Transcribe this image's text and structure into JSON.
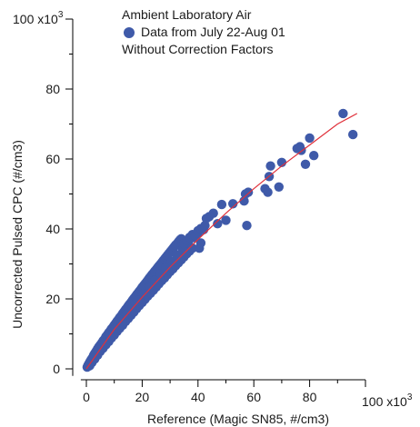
{
  "chart_data": {
    "type": "scatter",
    "title": "",
    "legend": {
      "position": "top-center",
      "lines": [
        "Ambient Laboratory Air",
        "Data from July 22-Aug 01",
        "Without Correction Factors"
      ],
      "marker_color": "#3f5aa9"
    },
    "xlabel": "Reference  (Magic SN85, #/cm3)",
    "ylabel": "Uncorrected Pulsed CPC (#/cm3)",
    "x_multiplier_label": "100 x10",
    "y_multiplier_label": "100 x10",
    "multiplier_exponent": "3",
    "xlim": [
      -2,
      100
    ],
    "ylim": [
      -2,
      100
    ],
    "x_ticks": [
      0,
      20,
      40,
      60,
      80
    ],
    "y_ticks": [
      0,
      20,
      40,
      60,
      80
    ],
    "x_tick_labels": [
      "0",
      "20",
      "40",
      "60",
      "80"
    ],
    "y_tick_labels": [
      "0",
      "20",
      "40",
      "60",
      "80"
    ],
    "grid": false,
    "colors": {
      "points": "#3f5aa9",
      "fit": "#e0303a",
      "axes": "#000000"
    },
    "series": [
      {
        "values": [
          [
            0.3,
            0.5
          ],
          [
            0.6,
            1.0
          ],
          [
            1.0,
            1.6
          ],
          [
            1.4,
            2.2
          ],
          [
            1.8,
            2.7
          ],
          [
            2.2,
            3.2
          ],
          [
            2.6,
            3.9
          ],
          [
            3.0,
            4.4
          ],
          [
            3.5,
            5.0
          ],
          [
            4.0,
            5.7
          ],
          [
            4.5,
            6.3
          ],
          [
            5.0,
            6.8
          ],
          [
            5.5,
            7.4
          ],
          [
            6.0,
            8.0
          ],
          [
            6.5,
            8.5
          ],
          [
            7.0,
            9.2
          ],
          [
            7.5,
            9.7
          ],
          [
            8.0,
            10.3
          ],
          [
            8.5,
            10.8
          ],
          [
            9.0,
            11.4
          ],
          [
            9.5,
            11.9
          ],
          [
            10.0,
            12.5
          ],
          [
            10.5,
            13.0
          ],
          [
            11.0,
            13.6
          ],
          [
            11.5,
            14.1
          ],
          [
            12.0,
            14.7
          ],
          [
            12.5,
            15.2
          ],
          [
            13.0,
            15.8
          ],
          [
            13.5,
            16.3
          ],
          [
            14.0,
            16.9
          ],
          [
            14.5,
            17.4
          ],
          [
            15.0,
            18.0
          ],
          [
            15.5,
            18.5
          ],
          [
            16.0,
            19.0
          ],
          [
            16.5,
            19.6
          ],
          [
            17.0,
            20.1
          ],
          [
            17.5,
            20.6
          ],
          [
            18.0,
            21.2
          ],
          [
            18.5,
            21.7
          ],
          [
            19.0,
            22.2
          ],
          [
            19.5,
            22.7
          ],
          [
            20.0,
            23.3
          ],
          [
            20.5,
            23.8
          ],
          [
            21.0,
            24.3
          ],
          [
            21.5,
            24.8
          ],
          [
            22.0,
            25.3
          ],
          [
            22.5,
            25.9
          ],
          [
            23.0,
            26.4
          ],
          [
            23.5,
            26.9
          ],
          [
            24.0,
            27.4
          ],
          [
            24.5,
            27.9
          ],
          [
            25.0,
            28.4
          ],
          [
            25.5,
            28.9
          ],
          [
            26.0,
            29.4
          ],
          [
            26.5,
            29.9
          ],
          [
            27.0,
            30.4
          ],
          [
            27.5,
            30.9
          ],
          [
            28.0,
            31.4
          ],
          [
            28.5,
            31.9
          ],
          [
            29.0,
            32.4
          ],
          [
            29.5,
            32.9
          ],
          [
            30.0,
            33.4
          ],
          [
            30.5,
            33.9
          ],
          [
            31.0,
            34.4
          ],
          [
            31.5,
            34.9
          ],
          [
            32.0,
            35.4
          ],
          [
            32.5,
            35.8
          ],
          [
            33.0,
            36.3
          ],
          [
            33.5,
            36.8
          ],
          [
            34.0,
            37.2
          ],
          [
            1.2,
            0.9
          ],
          [
            2.0,
            1.8
          ],
          [
            3.0,
            2.8
          ],
          [
            4.0,
            3.9
          ],
          [
            5.0,
            5.0
          ],
          [
            6.0,
            5.9
          ],
          [
            7.0,
            6.9
          ],
          [
            8.0,
            7.8
          ],
          [
            9.0,
            8.8
          ],
          [
            10.0,
            9.7
          ],
          [
            11.0,
            10.7
          ],
          [
            12.0,
            11.6
          ],
          [
            13.0,
            12.5
          ],
          [
            14.0,
            13.5
          ],
          [
            15.0,
            14.4
          ],
          [
            16.0,
            15.3
          ],
          [
            17.0,
            16.2
          ],
          [
            18.0,
            17.2
          ],
          [
            19.0,
            18.1
          ],
          [
            20.0,
            19.0
          ],
          [
            21.0,
            19.9
          ],
          [
            22.0,
            20.8
          ],
          [
            23.0,
            21.6
          ],
          [
            24.0,
            22.5
          ],
          [
            25.0,
            23.4
          ],
          [
            26.0,
            24.3
          ],
          [
            27.0,
            25.2
          ],
          [
            28.0,
            26.0
          ],
          [
            29.0,
            26.9
          ],
          [
            30.0,
            27.8
          ],
          [
            31.0,
            28.6
          ],
          [
            32.0,
            29.5
          ],
          [
            33.0,
            30.3
          ],
          [
            34.0,
            31.2
          ],
          [
            35.0,
            32.0
          ],
          [
            36.0,
            32.9
          ],
          [
            37.0,
            33.7
          ],
          [
            38.0,
            34.5
          ],
          [
            2.5,
            3.0
          ],
          [
            4.5,
            5.3
          ],
          [
            6.5,
            7.4
          ],
          [
            8.5,
            9.5
          ],
          [
            10.5,
            11.5
          ],
          [
            12.5,
            13.5
          ],
          [
            14.5,
            15.6
          ],
          [
            16.5,
            17.6
          ],
          [
            18.5,
            19.5
          ],
          [
            20.5,
            21.5
          ],
          [
            22.5,
            23.4
          ],
          [
            24.5,
            25.3
          ],
          [
            26.5,
            27.2
          ],
          [
            28.5,
            29.0
          ],
          [
            30.5,
            30.8
          ],
          [
            32.5,
            32.6
          ],
          [
            34.5,
            34.3
          ],
          [
            36.5,
            36.0
          ],
          [
            38.5,
            37.5
          ],
          [
            35.0,
            35.8
          ],
          [
            36.0,
            36.7
          ],
          [
            37.0,
            37.6
          ],
          [
            38.0,
            38.4
          ],
          [
            39.0,
            38.0
          ],
          [
            40.0,
            38.8
          ],
          [
            40.0,
            39.5
          ],
          [
            41.0,
            40.1
          ],
          [
            42.0,
            39.8
          ],
          [
            40.5,
            34.5
          ],
          [
            41.0,
            36.0
          ],
          [
            42.5,
            41.0
          ],
          [
            43.0,
            43.0
          ],
          [
            44.0,
            43.5
          ],
          [
            45.5,
            44.5
          ],
          [
            47.0,
            41.5
          ],
          [
            48.5,
            47.0
          ],
          [
            50.0,
            42.5
          ],
          [
            52.5,
            47.2
          ],
          [
            56.5,
            48.0
          ],
          [
            57.0,
            50.0
          ],
          [
            57.5,
            41.0
          ],
          [
            58.0,
            50.5
          ],
          [
            64.0,
            51.5
          ],
          [
            65.0,
            50.5
          ],
          [
            65.5,
            55.0
          ],
          [
            66.0,
            58.0
          ],
          [
            69.0,
            52.0
          ],
          [
            70.0,
            59.0
          ],
          [
            75.5,
            63.0
          ],
          [
            76.5,
            63.5
          ],
          [
            77.0,
            62.5
          ],
          [
            78.5,
            58.5
          ],
          [
            80.0,
            66.0
          ],
          [
            81.5,
            61.0
          ],
          [
            92.0,
            73.0
          ],
          [
            95.5,
            67.0
          ]
        ]
      }
    ],
    "fit_line": {
      "color": "#e0303a",
      "values": [
        [
          0,
          0
        ],
        [
          10,
          11.3
        ],
        [
          20,
          20.5
        ],
        [
          30,
          29.1
        ],
        [
          40,
          37.0
        ],
        [
          50,
          44.5
        ],
        [
          60,
          51.5
        ],
        [
          70,
          58.0
        ],
        [
          80,
          64.0
        ],
        [
          90,
          70.0
        ],
        [
          97,
          73.0
        ]
      ]
    }
  }
}
